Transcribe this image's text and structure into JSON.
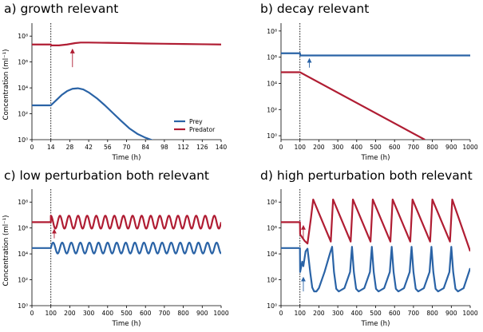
{
  "colors": {
    "prey": "#2a63a6",
    "predator": "#b01d33",
    "marker": "#000000"
  },
  "chart_data": [
    {
      "id": "a",
      "type": "line",
      "title": "a) growth relevant",
      "xlabel": "Time (h)",
      "ylabel": "Concentration (ml⁻¹)",
      "xlim": [
        0,
        140
      ],
      "xticks": [
        0,
        14,
        28,
        42,
        56,
        70,
        84,
        98,
        112,
        126,
        140
      ],
      "ylim_log10": [
        0,
        9
      ],
      "yticks_log10": [
        0,
        2,
        4,
        6,
        8
      ],
      "ytick_labels": [
        "10⁰",
        "10²",
        "10⁴",
        "10⁶",
        "10⁸"
      ],
      "perturbation_time": 14,
      "legend": {
        "position": "lower-right",
        "entries": [
          "Prey",
          "Predator"
        ]
      },
      "series": [
        {
          "name": "Prey",
          "color_key": "prey",
          "x": [
            0,
            14,
            18,
            22,
            26,
            30,
            34,
            38,
            42,
            48,
            54,
            60,
            66,
            72,
            78,
            84,
            88,
            92
          ],
          "log10_y": [
            2.65,
            2.65,
            3.05,
            3.45,
            3.75,
            3.93,
            3.97,
            3.88,
            3.65,
            3.2,
            2.65,
            2.05,
            1.45,
            0.88,
            0.45,
            0.15,
            0.0,
            -0.15
          ]
        },
        {
          "name": "Predator",
          "color_key": "predator",
          "x": [
            0,
            14,
            14.3,
            20,
            26,
            32,
            36,
            42,
            56,
            70,
            84,
            98,
            112,
            126,
            140
          ],
          "log10_y": [
            7.35,
            7.35,
            7.28,
            7.28,
            7.35,
            7.46,
            7.5,
            7.5,
            7.48,
            7.46,
            7.43,
            7.41,
            7.39,
            7.37,
            7.35
          ]
        }
      ],
      "arrows": [
        {
          "color_key": "predator",
          "x": 30,
          "from_log10": 5.6,
          "to_log10": 7.1
        }
      ]
    },
    {
      "id": "b",
      "type": "line",
      "title": "b) decay relevant",
      "xlabel": "Time (h)",
      "ylabel": "",
      "xlim": [
        0,
        1000
      ],
      "xticks": [
        0,
        100,
        200,
        300,
        400,
        500,
        600,
        700,
        800,
        900,
        1000
      ],
      "ylim_log10": [
        -0.3,
        8.6
      ],
      "yticks_log10": [
        0,
        2,
        4,
        6,
        8
      ],
      "ytick_labels": [
        "10⁰",
        "10²",
        "10⁴",
        "10⁶",
        "10⁸"
      ],
      "perturbation_time": 100,
      "series": [
        {
          "name": "Prey",
          "color_key": "prey",
          "x": [
            0,
            100,
            102,
            300,
            500,
            700,
            1000
          ],
          "log10_y": [
            6.3,
            6.3,
            6.13,
            6.13,
            6.13,
            6.13,
            6.13
          ]
        },
        {
          "name": "Predator",
          "color_key": "predator",
          "x": [
            0,
            100,
            760
          ],
          "log10_y": [
            4.85,
            4.85,
            -0.3
          ]
        }
      ],
      "arrows": [
        {
          "color_key": "prey",
          "x": 150,
          "from_log10": 5.2,
          "to_log10": 6.0
        }
      ]
    },
    {
      "id": "c",
      "type": "line",
      "title": "c) low perturbation both relevant",
      "xlabel": "Time (h)",
      "ylabel": "Concentration (ml⁻¹)",
      "xlim": [
        0,
        1000
      ],
      "xticks": [
        0,
        100,
        200,
        300,
        400,
        500,
        600,
        700,
        800,
        900,
        1000
      ],
      "ylim_log10": [
        0,
        9
      ],
      "yticks_log10": [
        0,
        2,
        4,
        6,
        8
      ],
      "ytick_labels": [
        "10⁰",
        "10²",
        "10⁴",
        "10⁶",
        "10⁸"
      ],
      "perturbation_time": 100,
      "series": [
        {
          "name": "Prey",
          "color_key": "prey",
          "oscillation": {
            "baseline_log10": 4.45,
            "start": 100,
            "end": 1000,
            "period": 48,
            "amplitude_log10": 0.42,
            "phase_offset": 0.0
          }
        },
        {
          "name": "Predator",
          "color_key": "predator",
          "oscillation": {
            "baseline_log10": 6.45,
            "start": 100,
            "end": 1000,
            "period": 48,
            "amplitude_log10": 0.5,
            "phase_offset": 0.25
          }
        }
      ],
      "arrows": [
        {
          "color_key": "predator",
          "x": 118,
          "from_log10": 5.2,
          "to_log10": 6.0
        }
      ]
    },
    {
      "id": "d",
      "type": "line",
      "title": "d) high perturbation both relevant",
      "xlabel": "Time (h)",
      "ylabel": "",
      "xlim": [
        0,
        1000
      ],
      "xticks": [
        0,
        100,
        200,
        300,
        400,
        500,
        600,
        700,
        800,
        900,
        1000
      ],
      "ylim_log10": [
        0,
        9
      ],
      "yticks_log10": [
        0,
        2,
        4,
        6,
        8
      ],
      "ytick_labels": [
        "10⁰",
        "10²",
        "10⁴",
        "10⁶",
        "10⁸"
      ],
      "perturbation_time": 100,
      "series": [
        {
          "name": "Prey",
          "color_key": "prey",
          "x": [
            0,
            100,
            101,
            112,
            118,
            130,
            140,
            155,
            165,
            175,
            187,
            200,
            230,
            260,
            270,
            280,
            292,
            305,
            335,
            365,
            375,
            385,
            397,
            410,
            440,
            470,
            480,
            490,
            502,
            515,
            545,
            575,
            585,
            595,
            607,
            620,
            650,
            680,
            690,
            700,
            712,
            725,
            755,
            785,
            795,
            805,
            817,
            830,
            860,
            890,
            900,
            910,
            922,
            935,
            965,
            1000
          ],
          "log10_y": [
            4.45,
            4.45,
            2.6,
            3.4,
            3.05,
            4.2,
            4.4,
            2.5,
            1.4,
            1.1,
            1.1,
            1.35,
            2.6,
            4.1,
            4.55,
            2.6,
            1.3,
            1.1,
            1.35,
            2.6,
            4.55,
            2.6,
            1.3,
            1.1,
            1.35,
            2.6,
            4.55,
            2.6,
            1.3,
            1.1,
            1.35,
            2.6,
            4.55,
            2.6,
            1.3,
            1.1,
            1.35,
            2.6,
            4.55,
            2.6,
            1.3,
            1.1,
            1.35,
            2.6,
            4.55,
            2.6,
            1.3,
            1.1,
            1.35,
            2.6,
            4.55,
            2.6,
            1.3,
            1.1,
            1.35,
            2.9
          ]
        },
        {
          "name": "Predator",
          "color_key": "predator",
          "x": [
            0,
            100,
            101,
            125,
            140,
            158,
            170,
            263,
            275,
            368,
            380,
            473,
            485,
            578,
            590,
            683,
            695,
            788,
            800,
            893,
            905,
            1000
          ],
          "log10_y": [
            6.45,
            6.45,
            5.5,
            5.0,
            4.8,
            6.75,
            8.2,
            4.95,
            8.2,
            4.95,
            8.2,
            4.95,
            8.2,
            4.95,
            8.2,
            4.95,
            8.2,
            4.95,
            8.2,
            4.95,
            8.2,
            4.2
          ]
        }
      ],
      "arrows": [
        {
          "color_key": "predator",
          "x": 118,
          "from_log10": 5.2,
          "to_log10": 6.3
        },
        {
          "color_key": "prey",
          "x": 118,
          "from_log10": 1.1,
          "to_log10": 2.3
        }
      ]
    }
  ]
}
